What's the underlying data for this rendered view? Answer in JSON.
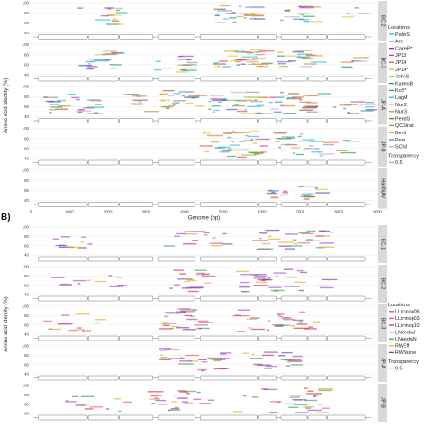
{
  "figure": {
    "panel_b_label": "B)"
  },
  "chart_data": [
    {
      "type": "scatter",
      "panel": "A",
      "xlabel": "Genome (bp)",
      "ylabel": "Amino acid identity (%)",
      "xlim": [
        0,
        9000
      ],
      "ylim": [
        40,
        100
      ],
      "xticks": [
        "0",
        "1000",
        "2000",
        "3000",
        "4000",
        "5000",
        "6000",
        "7000",
        "8000",
        "9000"
      ],
      "yticks": [
        "40",
        "60",
        "80",
        "100"
      ],
      "facets": [
        "BC-2",
        "BC-3",
        "JP-A",
        "JP-B",
        "HaRNAV"
      ],
      "legend": {
        "title": "Locations",
        "entries": [
          "PalmS",
          "Arc",
          "CapeP*",
          "JP13",
          "JP14",
          "JP14*",
          "JohnS",
          "KaneoB",
          "KoS*",
          "LagM",
          "Nun2",
          "Nun3",
          "PendS",
          "QCStrait",
          "BerS",
          "Peru",
          "SChil"
        ],
        "colors": [
          "#2bb3e0",
          "#1b5fb8",
          "#7a2fb3",
          "#c23a9a",
          "#e8464f",
          "#f4a22b",
          "#7cc242",
          "#1f9e50",
          "#17a399",
          "#1bbdd6",
          "#e5c817",
          "#bf8f2a",
          "#a05a2c",
          "#8c8c8c",
          "#e77c3b",
          "#3f7de0",
          "#c9a3e8"
        ],
        "transparency_title": "Transparency",
        "transparency_value": "0.5"
      },
      "clusters": [
        {
          "facet": "BC-2",
          "x": [
            1200,
            2300
          ],
          "y": [
            55,
            92
          ],
          "n": 14
        },
        {
          "facet": "BC-2",
          "x": [
            4700,
            5800
          ],
          "y": [
            60,
            95
          ],
          "n": 26
        },
        {
          "facet": "BC-2",
          "x": [
            6400,
            7300
          ],
          "y": [
            62,
            94
          ],
          "n": 16
        },
        {
          "facet": "BC-2",
          "x": [
            8000,
            8500
          ],
          "y": [
            70,
            90
          ],
          "n": 5
        },
        {
          "facet": "BC-3",
          "x": [
            1000,
            2200
          ],
          "y": [
            48,
            92
          ],
          "n": 18
        },
        {
          "facet": "BC-3",
          "x": [
            3200,
            4100
          ],
          "y": [
            45,
            80
          ],
          "n": 14
        },
        {
          "facet": "BC-3",
          "x": [
            4700,
            6000
          ],
          "y": [
            55,
            92
          ],
          "n": 34
        },
        {
          "facet": "BC-3",
          "x": [
            6300,
            7300
          ],
          "y": [
            55,
            90
          ],
          "n": 20
        },
        {
          "facet": "BC-3",
          "x": [
            8000,
            8800
          ],
          "y": [
            45,
            80
          ],
          "n": 8
        },
        {
          "facet": "JP-A",
          "x": [
            300,
            1700
          ],
          "y": [
            45,
            85
          ],
          "n": 24
        },
        {
          "facet": "JP-A",
          "x": [
            2200,
            3000
          ],
          "y": [
            50,
            85
          ],
          "n": 10
        },
        {
          "facet": "JP-A",
          "x": [
            3300,
            4300
          ],
          "y": [
            55,
            95
          ],
          "n": 24
        },
        {
          "facet": "JP-A",
          "x": [
            4600,
            6000
          ],
          "y": [
            45,
            90
          ],
          "n": 32
        },
        {
          "facet": "JP-A",
          "x": [
            6200,
            7500
          ],
          "y": [
            45,
            90
          ],
          "n": 26
        },
        {
          "facet": "JP-A",
          "x": [
            7800,
            8700
          ],
          "y": [
            45,
            80
          ],
          "n": 12
        },
        {
          "facet": "JP-B",
          "x": [
            4200,
            6000
          ],
          "y": [
            42,
            95
          ],
          "n": 38
        },
        {
          "facet": "JP-B",
          "x": [
            6300,
            7300
          ],
          "y": [
            48,
            92
          ],
          "n": 22
        },
        {
          "facet": "JP-B",
          "x": [
            7300,
            8200
          ],
          "y": [
            45,
            80
          ],
          "n": 10
        },
        {
          "facet": "HaRNAV",
          "x": [
            6100,
            6700
          ],
          "y": [
            40,
            65
          ],
          "n": 10
        },
        {
          "facet": "HaRNAV",
          "x": [
            6900,
            7500
          ],
          "y": [
            40,
            72
          ],
          "n": 10
        }
      ]
    },
    {
      "type": "scatter",
      "panel": "B",
      "ylabel": "Amino acid identity (%)",
      "ylim": [
        40,
        100
      ],
      "yticks": [
        "40",
        "60",
        "80",
        "100"
      ],
      "facets": [
        "BC-1",
        "BC-2",
        "BC-3",
        "JP-A",
        "JP-B"
      ],
      "legend": {
        "title": "Locations",
        "entries": [
          "LLimnop06",
          "LLimnop03",
          "LLimnop10",
          "LNeedwJ",
          "LNeedwN",
          "RWEff",
          "RWNurse"
        ],
        "colors": [
          "#b14cc7",
          "#e85a73",
          "#d82b2b",
          "#8d4fd6",
          "#3ea84d",
          "#e8a82a",
          "#6c3fa0"
        ],
        "transparency_title": "Transparency",
        "transparency_value": "0.5"
      },
      "clusters": [
        {
          "facet": "BC-1",
          "x": [
            500,
            1500
          ],
          "y": [
            50,
            90
          ],
          "n": 10
        },
        {
          "facet": "BC-1",
          "x": [
            3300,
            5000
          ],
          "y": [
            50,
            92
          ],
          "n": 16
        },
        {
          "facet": "BC-1",
          "x": [
            5600,
            7800
          ],
          "y": [
            50,
            95
          ],
          "n": 30
        },
        {
          "facet": "BC-2",
          "x": [
            500,
            2300
          ],
          "y": [
            45,
            85
          ],
          "n": 12
        },
        {
          "facet": "BC-2",
          "x": [
            3600,
            4600
          ],
          "y": [
            45,
            95
          ],
          "n": 20
        },
        {
          "facet": "BC-2",
          "x": [
            5000,
            7700
          ],
          "y": [
            45,
            95
          ],
          "n": 30
        },
        {
          "facet": "BC-3",
          "x": [
            300,
            1700
          ],
          "y": [
            45,
            85
          ],
          "n": 14
        },
        {
          "facet": "BC-3",
          "x": [
            3300,
            4400
          ],
          "y": [
            48,
            95
          ],
          "n": 26
        },
        {
          "facet": "BC-3",
          "x": [
            5200,
            7400
          ],
          "y": [
            45,
            92
          ],
          "n": 30
        },
        {
          "facet": "JP-A",
          "x": [
            3300,
            4000
          ],
          "y": [
            60,
            100
          ],
          "n": 8
        },
        {
          "facet": "JP-A",
          "x": [
            3800,
            5000
          ],
          "y": [
            42,
            85
          ],
          "n": 18
        },
        {
          "facet": "JP-A",
          "x": [
            5500,
            6800
          ],
          "y": [
            42,
            88
          ],
          "n": 18
        },
        {
          "facet": "JP-B",
          "x": [
            600,
            2400
          ],
          "y": [
            45,
            80
          ],
          "n": 12
        },
        {
          "facet": "JP-B",
          "x": [
            3000,
            4800
          ],
          "y": [
            45,
            90
          ],
          "n": 26
        },
        {
          "facet": "JP-B",
          "x": [
            5200,
            7600
          ],
          "y": [
            42,
            95
          ],
          "n": 30
        }
      ]
    }
  ]
}
